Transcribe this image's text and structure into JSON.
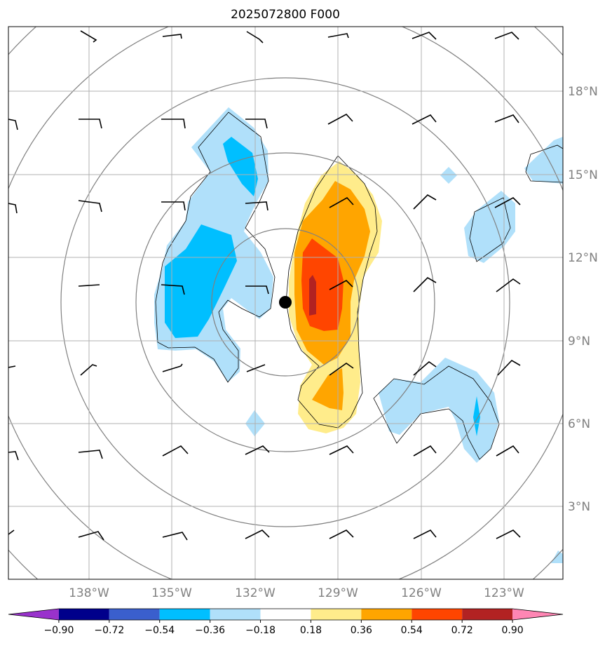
{
  "chart_data": {
    "type": "contour-map",
    "title": "2025072800 F000",
    "projection": "polar-azimuthal centered near 10.4°N 130.9°W",
    "x_ticks": [
      "138°W",
      "135°W",
      "132°W",
      "129°W",
      "126°W",
      "123°W"
    ],
    "y_ticks": [
      "18°N",
      "15°N",
      "12°N",
      "9°N",
      "6°N",
      "3°N"
    ],
    "lon_range": [
      -140.9,
      -120.9
    ],
    "lat_range": [
      0.4,
      20.4
    ],
    "grid": true,
    "center_marker": {
      "lon": -130.9,
      "lat": 10.4
    },
    "colorbar": {
      "levels": [
        "−0.90",
        "−0.72",
        "−0.54",
        "−0.36",
        "−0.18",
        "0.18",
        "0.36",
        "0.54",
        "0.72",
        "0.90"
      ],
      "colors": [
        "#9932cc",
        "#00008b",
        "#3a5fcd",
        "#00bfff",
        "#b0e0fa",
        "#ffffff",
        "#ffec8b",
        "#ffa500",
        "#ff4500",
        "#b22222",
        "#ff86b4"
      ],
      "extend": "both"
    },
    "contour_fill_regions": [
      {
        "level": "-0.36 to -0.18",
        "color": "#b0e0fa",
        "description": "western negative band"
      },
      {
        "level": "-0.54 to -0.36",
        "color": "#00bfff",
        "description": "western core"
      },
      {
        "level": "0.18 to 0.36",
        "color": "#ffec8b",
        "description": "positive band east of center"
      },
      {
        "level": "0.36 to 0.54",
        "color": "#ffa500"
      },
      {
        "level": "0.54 to 0.72",
        "color": "#ff4500"
      },
      {
        "level": "0.72 to 0.90",
        "color": "#b22222"
      }
    ],
    "range_rings": 5,
    "wind_barbs": true
  }
}
